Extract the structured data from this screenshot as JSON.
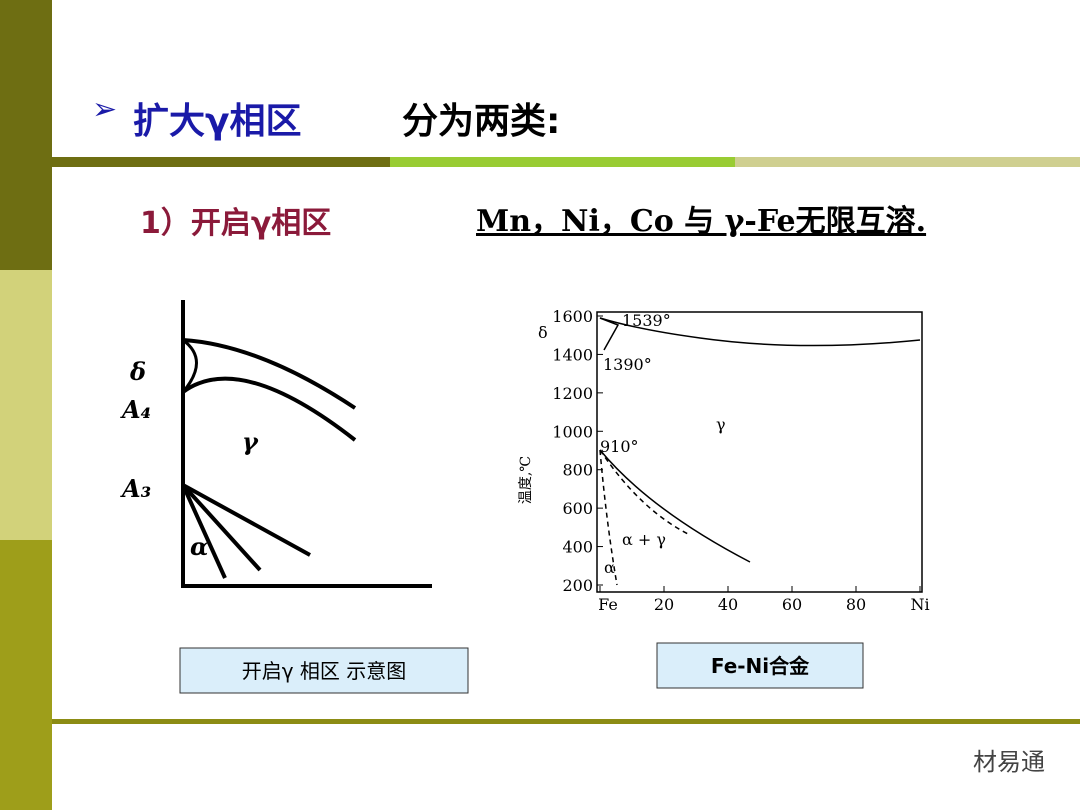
{
  "header": {
    "bullet": "➢",
    "title": "扩大γ相区",
    "subtitle": "分为两类:"
  },
  "item": {
    "label": "1）开启γ相区",
    "text": "Mn，Ni，Co 与 γ-Fe无限互溶."
  },
  "schematic": {
    "labels": [
      "δ",
      "A₄",
      "A₃",
      "γ",
      "α"
    ],
    "caption": "开启γ 相区 示意图"
  },
  "phase_diagram": {
    "y_label": "温度,℃",
    "yticks": [
      1600,
      1400,
      1200,
      1000,
      800,
      600,
      400,
      200
    ],
    "xticks": [
      {
        "value": 0,
        "label": "Fe"
      },
      20,
      40,
      60,
      80,
      {
        "value": 100,
        "label": "Ni"
      }
    ],
    "annotations": [
      "1539°",
      "1390°",
      "910°",
      "δ",
      "γ",
      "α + γ",
      "α"
    ],
    "caption": "Fe-Ni合金"
  },
  "watermark": "材易通"
}
